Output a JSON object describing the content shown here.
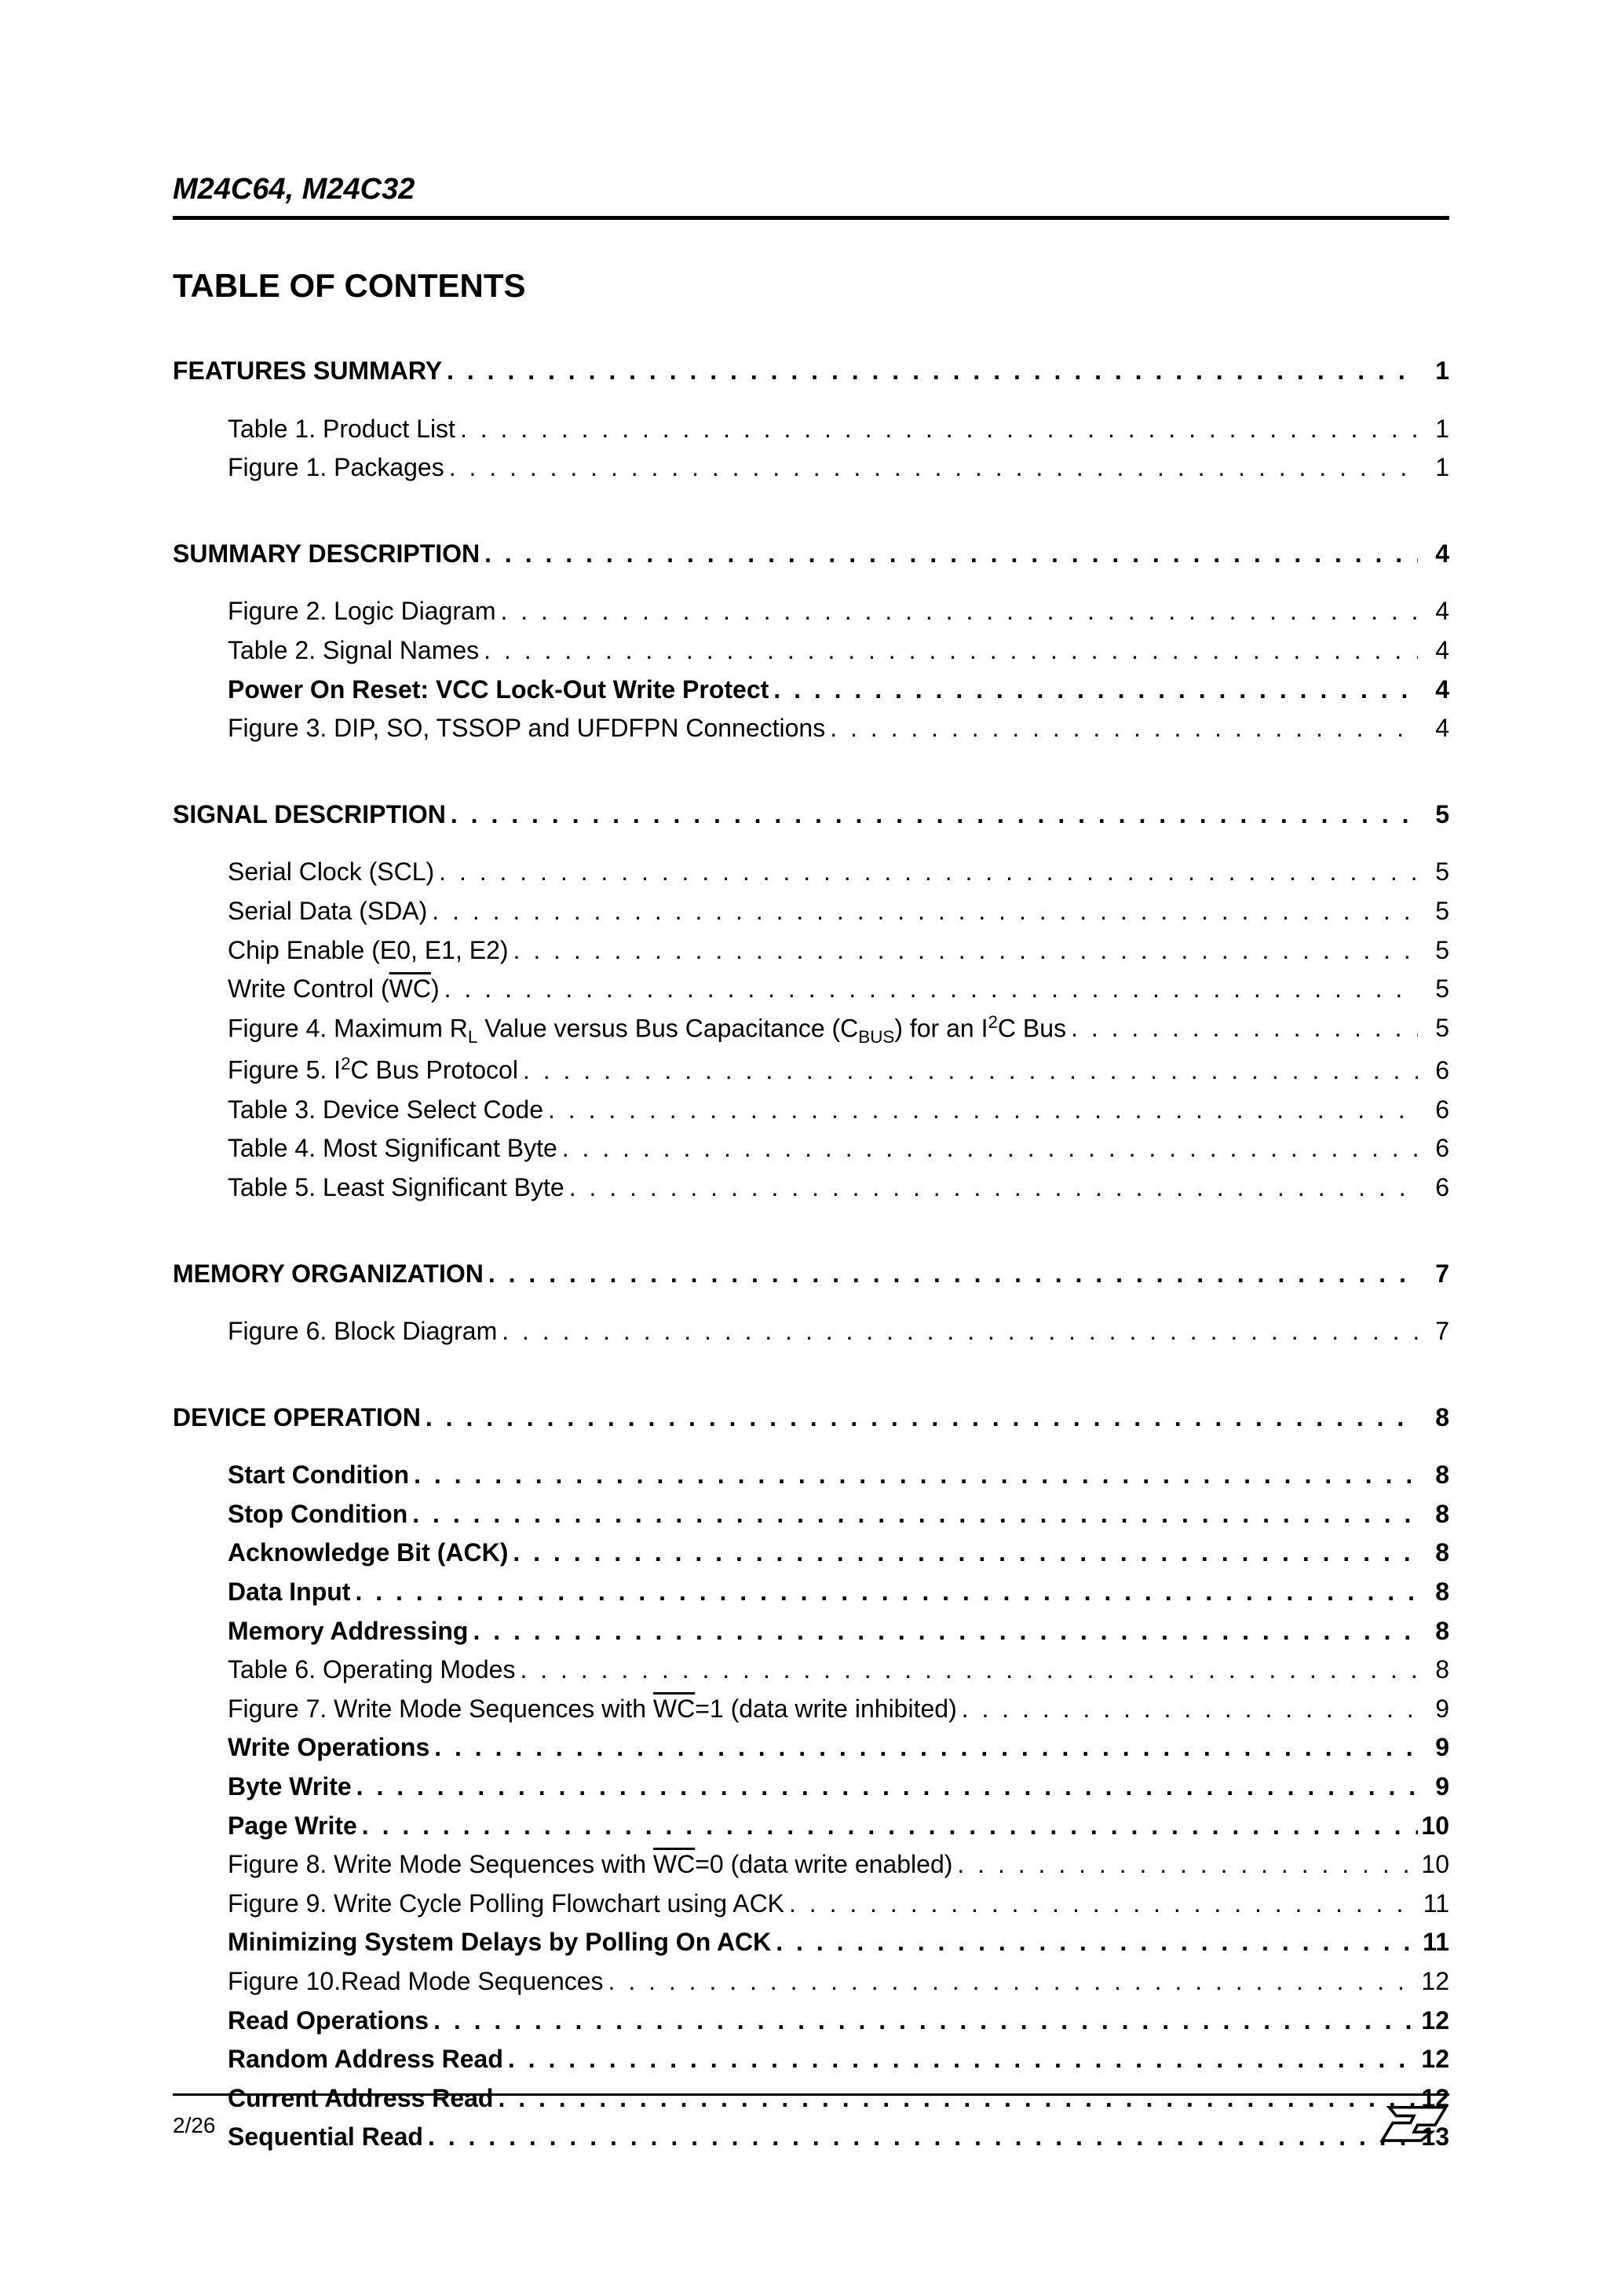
{
  "header": {
    "title": "M24C64, M24C32"
  },
  "tocTitle": "TABLE OF CONTENTS",
  "footer": {
    "page": "2/26"
  },
  "sections": [
    {
      "title": "FEATURES SUMMARY",
      "page": "1",
      "items": [
        {
          "label": "Table 1.   Product List",
          "page": "1"
        },
        {
          "label": "Figure 1. Packages",
          "page": "1"
        }
      ]
    },
    {
      "title": "SUMMARY DESCRIPTION",
      "page": "4",
      "items": [
        {
          "label": "Figure 2. Logic Diagram",
          "page": "4"
        },
        {
          "label": "Table 2.   Signal Names",
          "page": "4"
        },
        {
          "label": "Power On Reset: VCC Lock-Out Write Protect",
          "page": "4",
          "bold": true
        },
        {
          "label": "Figure 3. DIP, SO, TSSOP and UFDFPN Connections",
          "page": "4"
        }
      ]
    },
    {
      "title": "SIGNAL DESCRIPTION",
      "page": "5",
      "items": [
        {
          "label": "Serial Clock (SCL)",
          "page": "5"
        },
        {
          "label": "Serial Data (SDA)",
          "page": "5"
        },
        {
          "label": "Chip Enable (E0, E1, E2)",
          "page": "5"
        },
        {
          "html": "Write Control (<span class=\"overline\">WC</span>)",
          "page": "5"
        },
        {
          "html": "Figure 4. Maximum R<sub>L</sub> Value versus Bus Capacitance (C<sub>BUS</sub>) for an I<sup>2</sup>C Bus",
          "page": "5"
        },
        {
          "html": "Figure 5. I<sup>2</sup>C Bus Protocol",
          "page": "6"
        },
        {
          "label": "Table 3.   Device Select Code",
          "page": "6"
        },
        {
          "label": "Table 4.   Most Significant Byte",
          "page": "6"
        },
        {
          "label": "Table 5.   Least Significant Byte",
          "page": "6"
        }
      ]
    },
    {
      "title": "MEMORY ORGANIZATION",
      "page": "7",
      "items": [
        {
          "label": "Figure 6. Block Diagram",
          "page": "7"
        }
      ]
    },
    {
      "title": "DEVICE OPERATION",
      "page": "8",
      "items": [
        {
          "label": "Start Condition",
          "page": "8",
          "bold": true
        },
        {
          "label": "Stop Condition",
          "page": "8",
          "bold": true
        },
        {
          "label": "Acknowledge Bit (ACK)",
          "page": "8",
          "bold": true
        },
        {
          "label": "Data Input",
          "page": "8",
          "bold": true
        },
        {
          "label": "Memory Addressing",
          "page": "8",
          "bold": true
        },
        {
          "label": "Table 6.   Operating Modes",
          "page": "8"
        },
        {
          "html": "Figure 7. Write Mode Sequences with <span class=\"overline\">WC</span>=1 (data write inhibited)",
          "page": "9"
        },
        {
          "label": "Write Operations",
          "page": "9",
          "bold": true
        },
        {
          "label": "Byte Write",
          "page": "9",
          "bold": true
        },
        {
          "label": "Page Write",
          "page": "10",
          "bold": true
        },
        {
          "html": "Figure 8. Write Mode Sequences with <span class=\"overline\">WC</span>=0 (data write enabled)",
          "page": "10"
        },
        {
          "label": "Figure 9. Write Cycle Polling Flowchart using ACK",
          "page": "11"
        },
        {
          "label": "Minimizing System Delays by Polling On ACK",
          "page": "11",
          "bold": true
        },
        {
          "label": "Figure 10.Read Mode Sequences",
          "page": "12"
        },
        {
          "label": "Read Operations",
          "page": "12",
          "bold": true
        },
        {
          "label": "Random Address Read",
          "page": "12",
          "bold": true
        },
        {
          "label": "Current Address Read",
          "page": "12",
          "bold": true
        },
        {
          "label": "Sequential Read",
          "page": "13",
          "bold": true
        }
      ]
    }
  ]
}
